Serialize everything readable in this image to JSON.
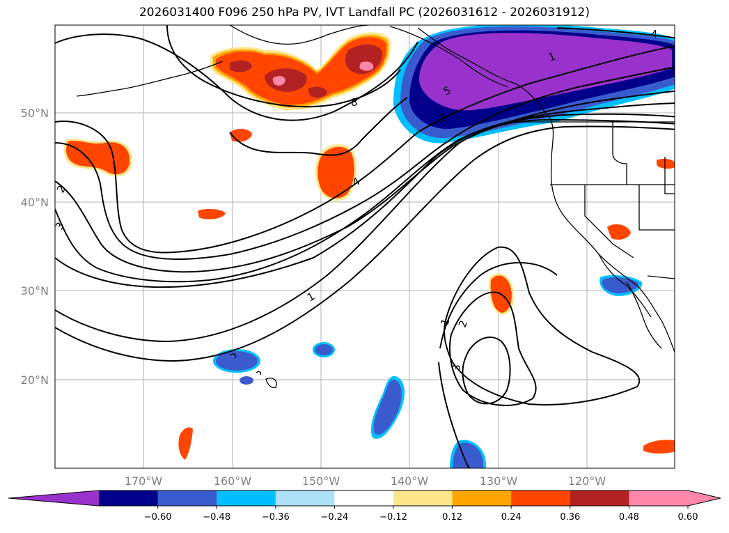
{
  "title": "2026031400 F096 250 hPa PV, IVT Landfall PC (2026031612 - 2026031912)",
  "map": {
    "lon_labels": [
      "170°W",
      "160°W",
      "150°W",
      "140°W",
      "130°W",
      "120°W"
    ],
    "lat_labels": [
      "50°N",
      "40°N",
      "30°N",
      "20°N"
    ],
    "contour_labels": [
      "8",
      "4",
      "4",
      "5",
      "3",
      "1",
      "2",
      "3",
      "1",
      "1",
      "2",
      "3"
    ]
  },
  "colorbar": {
    "ticks": [
      "−0.60",
      "−0.48",
      "−0.36",
      "−0.24",
      "−0.12",
      "0.12",
      "0.24",
      "0.36",
      "0.48",
      "0.60"
    ],
    "colors": [
      "#9932cc",
      "#00008b",
      "#3a5bcd",
      "#00bfff",
      "#aee1f7",
      "#ffffff",
      "#fde68a",
      "#ffa500",
      "#ff4500",
      "#b22222",
      "#ff88aa",
      "#ff88aa"
    ]
  }
}
